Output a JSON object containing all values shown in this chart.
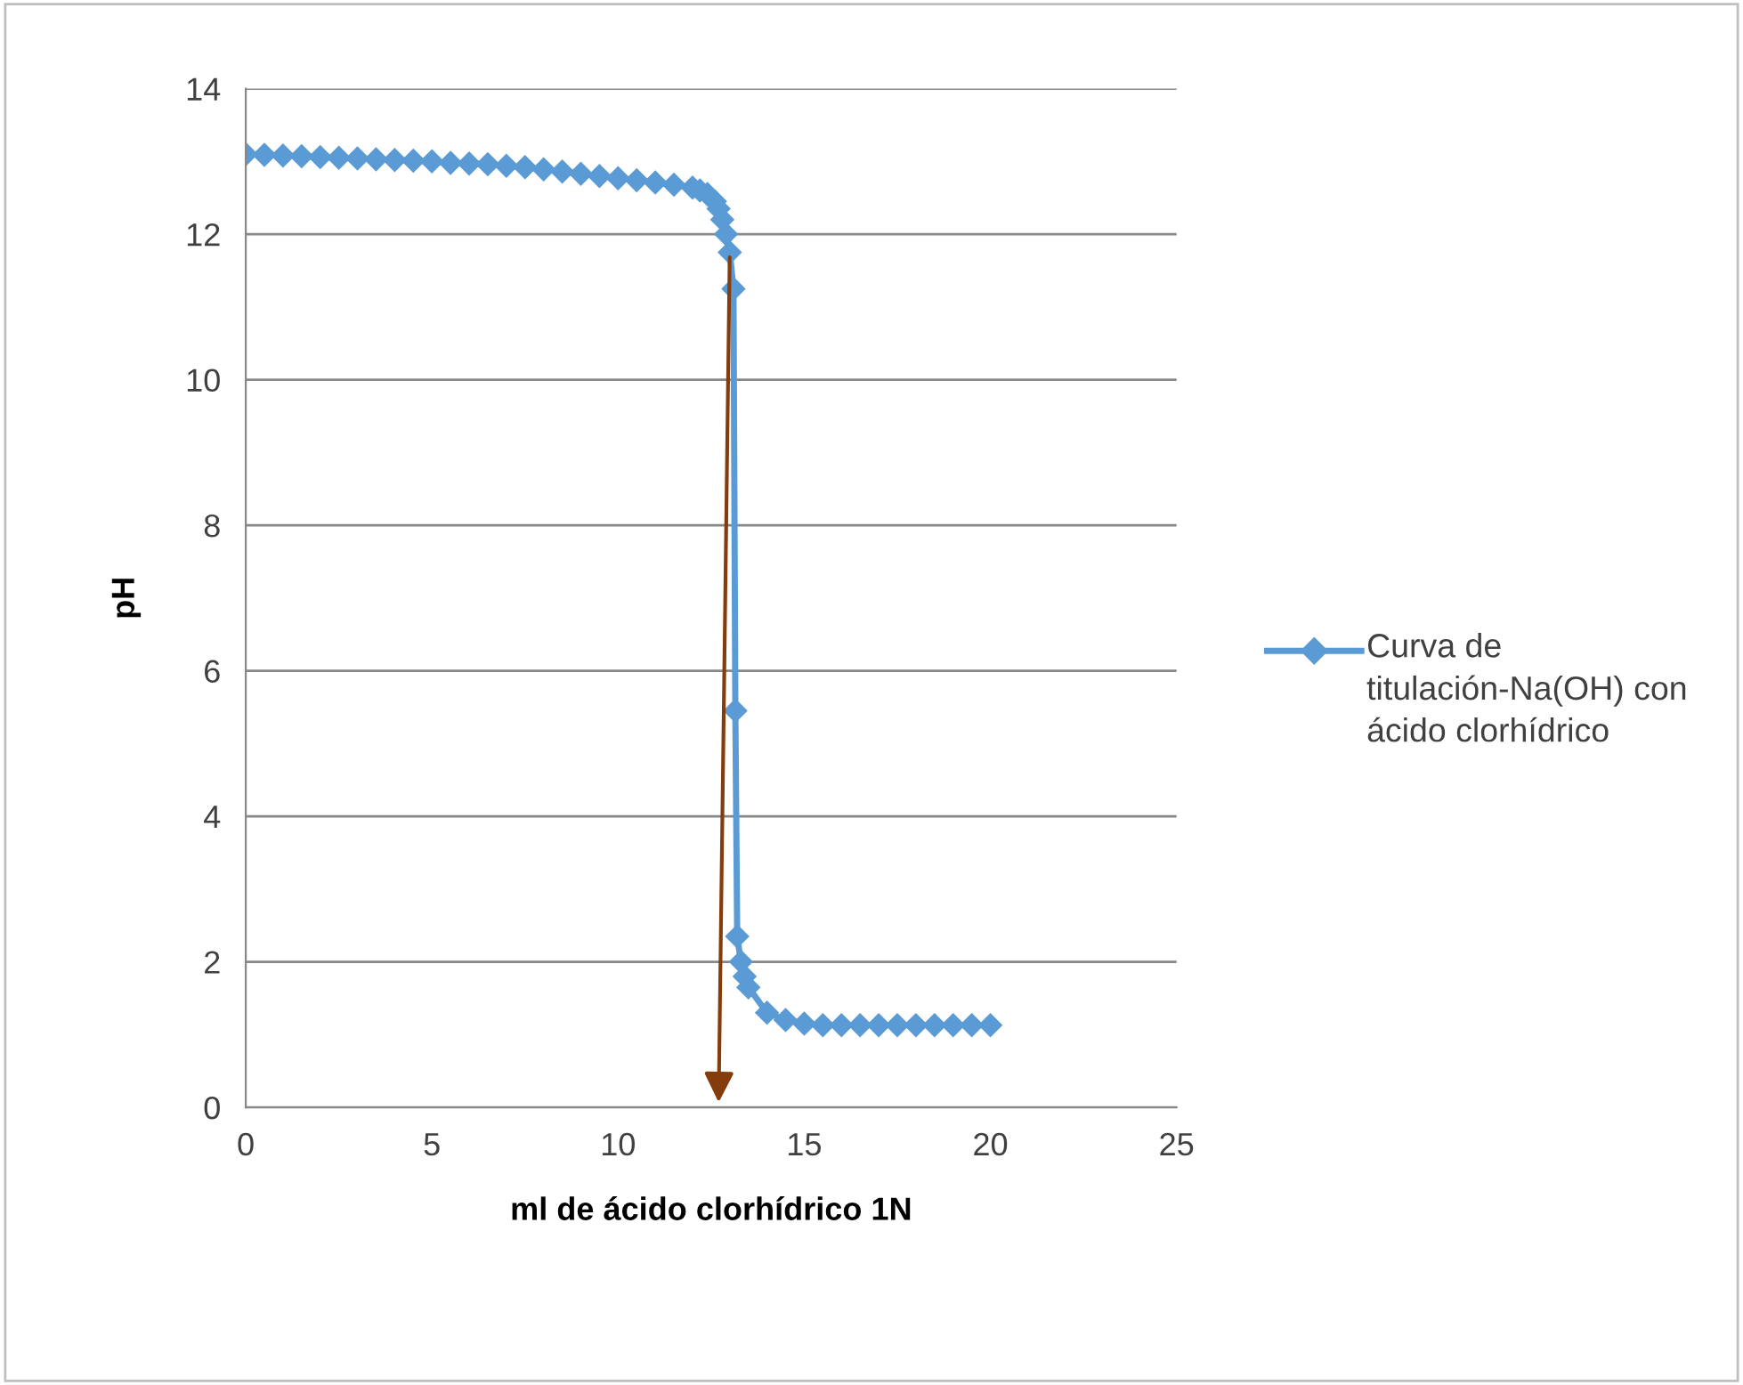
{
  "chart_data": {
    "type": "line",
    "xlabel": "ml de ácido clorhídrico 1N",
    "ylabel": "pH",
    "xlim": [
      0,
      25
    ],
    "xticks": [
      0,
      5,
      10,
      15,
      20,
      25
    ],
    "ylim": [
      0,
      14
    ],
    "yticks": [
      0,
      2,
      4,
      6,
      8,
      10,
      12,
      14
    ],
    "grid": "y",
    "legend": "right",
    "marker": "diamond",
    "line_style": "solid",
    "series": [
      {
        "name": "Curva de titulación-Na(OH) con ácido clorhídrico",
        "color": "#5b9bd5",
        "x": [
          0,
          0.5,
          1,
          1.5,
          2,
          2.5,
          3,
          3.5,
          4,
          4.5,
          5,
          5.5,
          6,
          6.5,
          7,
          7.5,
          8,
          8.5,
          9,
          9.5,
          10,
          10.5,
          11,
          11.5,
          12,
          12.2,
          12.4,
          12.6,
          12.7,
          12.8,
          12.9,
          13.0,
          13.1,
          13.15,
          13.2,
          13.3,
          13.4,
          13.5,
          14.0,
          14.5,
          15,
          15.5,
          16,
          16.5,
          17,
          17.5,
          18,
          18.5,
          19,
          19.5,
          20
        ],
        "values": [
          13.1,
          13.09,
          13.08,
          13.07,
          13.06,
          13.05,
          13.04,
          13.03,
          13.02,
          13.01,
          13.0,
          12.98,
          12.97,
          12.96,
          12.94,
          12.92,
          12.89,
          12.86,
          12.83,
          12.8,
          12.77,
          12.74,
          12.71,
          12.68,
          12.64,
          12.6,
          12.55,
          12.45,
          12.35,
          12.2,
          12.0,
          11.75,
          11.25,
          5.45,
          2.35,
          2.0,
          1.8,
          1.65,
          1.3,
          1.2,
          1.15,
          1.13,
          1.13,
          1.13,
          1.13,
          1.13,
          1.13,
          1.13,
          1.13,
          1.13,
          1.13
        ]
      }
    ]
  }
}
